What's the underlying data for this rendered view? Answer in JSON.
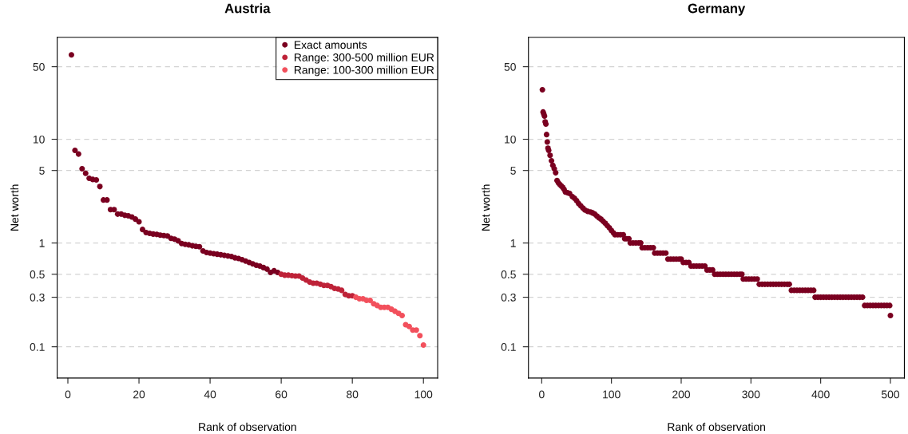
{
  "chart_data": [
    {
      "type": "scatter",
      "title": "Austria",
      "xlabel": "Rank of observation",
      "ylabel": "Net worth",
      "log": "y",
      "grid": "y",
      "legend": "top right",
      "marker": "circle",
      "xlim": [
        -3,
        104
      ],
      "xticks": [
        0,
        20,
        40,
        60,
        80,
        100
      ],
      "ylim": [
        0.05,
        96
      ],
      "yticks": [
        0.1,
        0.3,
        0.5,
        1,
        5,
        10,
        50
      ],
      "series": [
        {
          "name": "Exact amounts",
          "color": "#7a0020",
          "x": [
            1,
            2,
            3,
            4,
            5,
            6,
            7,
            8,
            9,
            10,
            11,
            12,
            13,
            14,
            15,
            16,
            17,
            18,
            19,
            20,
            21,
            22,
            23,
            24,
            25,
            26,
            27,
            28,
            29,
            30,
            31,
            32,
            33,
            34,
            35,
            36,
            37,
            38,
            39,
            40,
            41,
            42,
            43,
            44,
            45,
            46,
            47,
            48,
            49,
            50,
            51,
            52,
            53,
            54,
            55,
            56,
            57,
            58,
            59
          ],
          "values": [
            65,
            7.8,
            7.2,
            5.2,
            4.7,
            4.2,
            4.1,
            4.06,
            3.5,
            2.6,
            2.6,
            2.1,
            2.1,
            1.9,
            1.9,
            1.85,
            1.83,
            1.78,
            1.7,
            1.6,
            1.35,
            1.26,
            1.24,
            1.22,
            1.21,
            1.19,
            1.18,
            1.17,
            1.11,
            1.09,
            1.05,
            0.99,
            0.97,
            0.96,
            0.94,
            0.93,
            0.92,
            0.84,
            0.81,
            0.8,
            0.79,
            0.78,
            0.77,
            0.76,
            0.75,
            0.74,
            0.72,
            0.71,
            0.69,
            0.67,
            0.65,
            0.63,
            0.61,
            0.6,
            0.58,
            0.56,
            0.52,
            0.54,
            0.52
          ]
        },
        {
          "name": "Range: 300-500 million EUR",
          "color": "#be2238",
          "x": [
            60,
            61,
            62,
            63,
            64,
            65,
            66,
            67,
            68,
            69,
            70,
            71,
            72,
            73,
            74,
            75,
            76,
            77,
            78,
            79,
            80
          ],
          "values": [
            0.5,
            0.49,
            0.49,
            0.485,
            0.48,
            0.48,
            0.46,
            0.44,
            0.42,
            0.41,
            0.41,
            0.4,
            0.39,
            0.39,
            0.38,
            0.365,
            0.36,
            0.35,
            0.32,
            0.31,
            0.31
          ]
        },
        {
          "name": "Range: 100-300 million EUR",
          "color": "#f2505c",
          "x": [
            81,
            82,
            83,
            84,
            85,
            86,
            87,
            88,
            89,
            90,
            91,
            92,
            93,
            94,
            95,
            96,
            97,
            98,
            99,
            100
          ],
          "values": [
            0.3,
            0.29,
            0.29,
            0.28,
            0.28,
            0.26,
            0.25,
            0.24,
            0.24,
            0.24,
            0.23,
            0.22,
            0.21,
            0.2,
            0.163,
            0.157,
            0.145,
            0.145,
            0.128,
            0.104
          ]
        }
      ]
    },
    {
      "type": "scatter",
      "title": "Germany",
      "xlabel": "Rank of observation",
      "ylabel": "Net worth",
      "log": "y",
      "grid": "y",
      "marker": "circle",
      "xlim": [
        -19,
        520
      ],
      "xticks": [
        0,
        100,
        200,
        300,
        400,
        500
      ],
      "ylim": [
        0.05,
        96
      ],
      "yticks": [
        0.1,
        0.3,
        0.5,
        1,
        5,
        10,
        50
      ],
      "series": [
        {
          "color": "#7a0020",
          "x": [
            1,
            2,
            3,
            4,
            5,
            6,
            7,
            8,
            9,
            10,
            12,
            14,
            16,
            18,
            20,
            22,
            24,
            26,
            28,
            30,
            32,
            34,
            37,
            40,
            44,
            47,
            50,
            53,
            56,
            59,
            62,
            66,
            70,
            73,
            76,
            79,
            82,
            85,
            88,
            91,
            94,
            97,
            100,
            103,
            105,
            109,
            113,
            117,
            119,
            122,
            125,
            127,
            131,
            135,
            139,
            142,
            144,
            148,
            152,
            156,
            160,
            162,
            166,
            170,
            174,
            178,
            181,
            185,
            189,
            193,
            197,
            200,
            203,
            207,
            211,
            214,
            218,
            222,
            226,
            230,
            234,
            237,
            241,
            245,
            248,
            252,
            256,
            260,
            264,
            268,
            272,
            276,
            280,
            284,
            287,
            289,
            293,
            297,
            301,
            305,
            309,
            312,
            316,
            320,
            324,
            328,
            332,
            336,
            340,
            344,
            348,
            352,
            355,
            358,
            362,
            366,
            370,
            374,
            378,
            382,
            386,
            390,
            392,
            396,
            400,
            404,
            408,
            412,
            416,
            420,
            424,
            428,
            432,
            436,
            440,
            444,
            448,
            452,
            456,
            460,
            463,
            467,
            471,
            475,
            479,
            483,
            487,
            491,
            495,
            499,
            500
          ],
          "values": [
            30,
            18.3,
            17.5,
            16.7,
            14.7,
            14,
            11.1,
            9.4,
            8.2,
            7.8,
            7,
            6.2,
            5.6,
            5.2,
            4.75,
            4,
            3.8,
            3.66,
            3.55,
            3.44,
            3.3,
            3.1,
            3.05,
            3,
            2.8,
            2.7,
            2.56,
            2.4,
            2.28,
            2.17,
            2.08,
            2.02,
            1.99,
            1.95,
            1.9,
            1.82,
            1.75,
            1.7,
            1.62,
            1.55,
            1.47,
            1.4,
            1.32,
            1.25,
            1.2,
            1.2,
            1.2,
            1.2,
            1.1,
            1.1,
            1.1,
            1,
            1,
            1,
            1,
            1,
            0.9,
            0.9,
            0.9,
            0.9,
            0.9,
            0.8,
            0.8,
            0.8,
            0.8,
            0.8,
            0.7,
            0.7,
            0.7,
            0.7,
            0.7,
            0.7,
            0.65,
            0.65,
            0.65,
            0.6,
            0.6,
            0.6,
            0.6,
            0.6,
            0.6,
            0.55,
            0.55,
            0.55,
            0.5,
            0.5,
            0.5,
            0.5,
            0.5,
            0.5,
            0.5,
            0.5,
            0.5,
            0.5,
            0.5,
            0.45,
            0.45,
            0.45,
            0.45,
            0.45,
            0.45,
            0.4,
            0.4,
            0.4,
            0.4,
            0.4,
            0.4,
            0.4,
            0.4,
            0.4,
            0.4,
            0.4,
            0.4,
            0.35,
            0.35,
            0.35,
            0.35,
            0.35,
            0.35,
            0.35,
            0.35,
            0.35,
            0.3,
            0.3,
            0.3,
            0.3,
            0.3,
            0.3,
            0.3,
            0.3,
            0.3,
            0.3,
            0.3,
            0.3,
            0.3,
            0.3,
            0.3,
            0.3,
            0.3,
            0.3,
            0.25,
            0.25,
            0.25,
            0.25,
            0.25,
            0.25,
            0.25,
            0.25,
            0.25,
            0.25,
            0.2
          ]
        }
      ]
    }
  ]
}
